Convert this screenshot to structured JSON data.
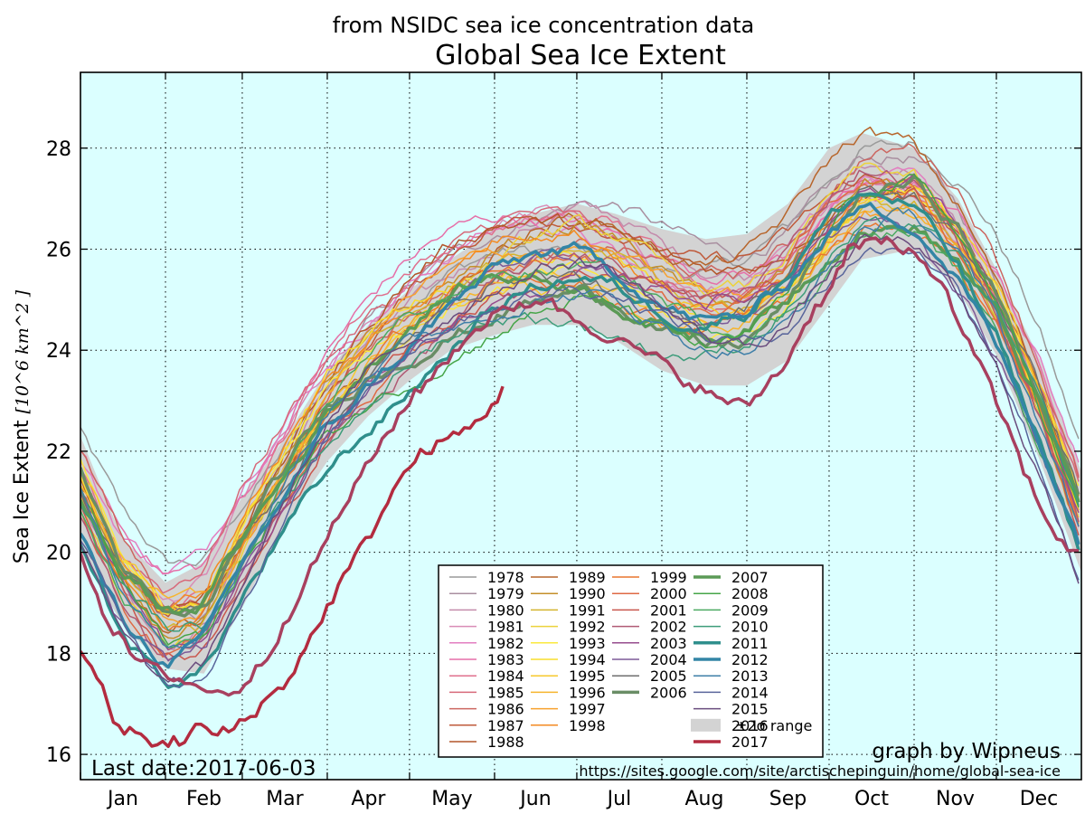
{
  "header": {
    "subtitle": "from NSIDC sea ice concentration data",
    "title": "Global Sea Ice Extent"
  },
  "footer": {
    "last_date": "Last date:2017-06-03",
    "credit": "graph by Wipneus",
    "url": "https://sites.google.com/site/arctischepinguin/home/global-sea-ice"
  },
  "chart_data": {
    "type": "line",
    "title": "Global Sea Ice Extent",
    "subtitle": "from NSIDC sea ice concentration data",
    "ylabel": "Sea Ice Extent [10^6 km^2 ]",
    "xlabel": "",
    "x_unit": "day of year",
    "xlim": [
      0,
      365
    ],
    "ylim": [
      15.5,
      29.5
    ],
    "yticks": [
      16,
      18,
      20,
      22,
      24,
      26,
      28
    ],
    "xticks": [
      {
        "label": "Jan",
        "day": 0
      },
      {
        "label": "Feb",
        "day": 31
      },
      {
        "label": "Mar",
        "day": 59
      },
      {
        "label": "Apr",
        "day": 90
      },
      {
        "label": "May",
        "day": 120
      },
      {
        "label": "Jun",
        "day": 151
      },
      {
        "label": "Jul",
        "day": 181
      },
      {
        "label": "Aug",
        "day": 212
      },
      {
        "label": "Sep",
        "day": 243
      },
      {
        "label": "Oct",
        "day": 273
      },
      {
        "label": "Nov",
        "day": 304
      },
      {
        "label": "Dec",
        "day": 334
      }
    ],
    "grid": true,
    "legend_position": "bottom-center",
    "background_color": "#dbffff",
    "range": {
      "name": "±2σ range",
      "color": "#d3d3d3",
      "day": [
        0,
        15,
        31,
        45,
        59,
        75,
        90,
        105,
        120,
        135,
        151,
        165,
        181,
        195,
        212,
        228,
        243,
        258,
        273,
        285,
        304,
        320,
        334,
        350,
        365
      ],
      "upper": [
        22.3,
        20.3,
        19.4,
        19.8,
        21.1,
        22.3,
        23.6,
        24.5,
        25.2,
        25.8,
        26.4,
        26.7,
        26.9,
        26.7,
        26.4,
        26.2,
        26.3,
        26.9,
        28.0,
        28.3,
        28.0,
        27.0,
        25.6,
        23.8,
        21.6
      ],
      "lower": [
        20.0,
        18.6,
        17.7,
        17.6,
        18.9,
        20.6,
        21.8,
        22.7,
        23.4,
        24.0,
        24.3,
        24.5,
        24.5,
        24.2,
        23.6,
        23.3,
        23.3,
        23.8,
        24.9,
        25.8,
        26.0,
        25.2,
        23.9,
        21.8,
        19.6
      ]
    },
    "mean_curve": {
      "day": [
        0,
        15,
        31,
        45,
        59,
        75,
        90,
        105,
        120,
        135,
        151,
        165,
        181,
        195,
        212,
        228,
        243,
        258,
        273,
        285,
        304,
        320,
        334,
        350,
        365
      ],
      "value": [
        21.1,
        19.4,
        18.4,
        18.6,
        20.0,
        21.4,
        22.7,
        23.6,
        24.3,
        24.9,
        25.4,
        25.6,
        25.7,
        25.5,
        25.0,
        24.7,
        24.8,
        25.4,
        26.4,
        27.0,
        27.0,
        26.1,
        24.8,
        22.8,
        20.6
      ]
    },
    "series": [
      {
        "name": "1978",
        "color": "#9a9a9a",
        "lw": 1.5
      },
      {
        "name": "1979",
        "color": "#a98fa0",
        "lw": 1.5
      },
      {
        "name": "1980",
        "color": "#c48bab",
        "lw": 1.5
      },
      {
        "name": "1981",
        "color": "#d98cb6",
        "lw": 1.5
      },
      {
        "name": "1982",
        "color": "#e37ec0",
        "lw": 1.5
      },
      {
        "name": "1983",
        "color": "#e66fa8",
        "lw": 1.5
      },
      {
        "name": "1984",
        "color": "#e0708e",
        "lw": 1.5
      },
      {
        "name": "1985",
        "color": "#d7697a",
        "lw": 1.5
      },
      {
        "name": "1986",
        "color": "#cc6660",
        "lw": 1.5
      },
      {
        "name": "1987",
        "color": "#bf5a3b",
        "lw": 1.5
      },
      {
        "name": "1988",
        "color": "#b3562a",
        "lw": 1.5
      },
      {
        "name": "1989",
        "color": "#b7652b",
        "lw": 1.5
      },
      {
        "name": "1990",
        "color": "#c48f2a",
        "lw": 1.5
      },
      {
        "name": "1991",
        "color": "#d4b52f",
        "lw": 1.5
      },
      {
        "name": "1992",
        "color": "#ecd33c",
        "lw": 1.5
      },
      {
        "name": "1993",
        "color": "#fbe93e",
        "lw": 1.5
      },
      {
        "name": "1994",
        "color": "#f8dd2f",
        "lw": 1.5
      },
      {
        "name": "1995",
        "color": "#f7c92e",
        "lw": 1.5
      },
      {
        "name": "1996",
        "color": "#f6b52d",
        "lw": 1.5
      },
      {
        "name": "1997",
        "color": "#f7a12d",
        "lw": 1.5
      },
      {
        "name": "1998",
        "color": "#f38a22",
        "lw": 1.5
      },
      {
        "name": "1999",
        "color": "#e8762f",
        "lw": 1.5
      },
      {
        "name": "2000",
        "color": "#df6a44",
        "lw": 1.5
      },
      {
        "name": "2001",
        "color": "#c9574e",
        "lw": 1.5
      },
      {
        "name": "2002",
        "color": "#b05a74",
        "lw": 1.5
      },
      {
        "name": "2003",
        "color": "#964c8e",
        "lw": 1.5
      },
      {
        "name": "2004",
        "color": "#7d5a98",
        "lw": 1.5
      },
      {
        "name": "2005",
        "color": "#6f6f6f",
        "lw": 1.5
      },
      {
        "name": "2006",
        "color": "#6a8d66",
        "lw": 3.5
      },
      {
        "name": "2007",
        "color": "#5b9a56",
        "lw": 3.5
      },
      {
        "name": "2008",
        "color": "#46a548",
        "lw": 1.5
      },
      {
        "name": "2009",
        "color": "#4caa62",
        "lw": 1.5
      },
      {
        "name": "2010",
        "color": "#3d9c7a",
        "lw": 1.5
      },
      {
        "name": "2011",
        "color": "#2f8f8c",
        "lw": 3.5
      },
      {
        "name": "2012",
        "color": "#3385a6",
        "lw": 3.5
      },
      {
        "name": "2013",
        "color": "#3f7fa8",
        "lw": 1.5
      },
      {
        "name": "2014",
        "color": "#59659b",
        "lw": 1.5
      },
      {
        "name": "2015",
        "color": "#6a4c7e",
        "lw": 1.5
      },
      {
        "name": "2016",
        "color": "#a8405f",
        "lw": 3.5
      },
      {
        "name": "2017",
        "color": "#b32b3f",
        "lw": 3.5
      }
    ],
    "highlight_series": {
      "2016": {
        "day": [
          0,
          10,
          20,
          31,
          40,
          50,
          59,
          70,
          80,
          90,
          100,
          110,
          120,
          130,
          140,
          151,
          160,
          170,
          181,
          190,
          200,
          212,
          220,
          230,
          243,
          250,
          258,
          265,
          273,
          280,
          290,
          295,
          300,
          304,
          306,
          310,
          315,
          320,
          325,
          330,
          334,
          340,
          345,
          350,
          355,
          360,
          365
        ],
        "value": [
          20.0,
          18.6,
          17.9,
          17.6,
          17.4,
          17.2,
          17.3,
          18.1,
          19.2,
          20.3,
          21.3,
          22.2,
          23.0,
          23.6,
          24.2,
          24.7,
          24.9,
          25.0,
          24.6,
          24.3,
          24.1,
          23.8,
          23.4,
          23.1,
          22.9,
          23.3,
          23.8,
          24.6,
          25.2,
          26.0,
          26.2,
          26.1,
          25.9,
          26.0,
          25.8,
          25.6,
          25.2,
          24.6,
          24.0,
          23.5,
          23.0,
          22.2,
          21.5,
          20.9,
          20.4,
          20.1,
          19.9
        ]
      },
      "2017": {
        "day": [
          0,
          3,
          5,
          8,
          10,
          12,
          15,
          20,
          25,
          28,
          31,
          35,
          38,
          42,
          45,
          50,
          55,
          60,
          65,
          70,
          75,
          80,
          85,
          90,
          95,
          100,
          105,
          110,
          115,
          120,
          125,
          130,
          135,
          140,
          145,
          150,
          154
        ],
        "value": [
          18.0,
          17.9,
          17.7,
          17.3,
          16.9,
          16.7,
          16.4,
          16.5,
          16.3,
          16.1,
          16.2,
          16.3,
          16.2,
          16.6,
          16.5,
          16.4,
          16.5,
          16.7,
          16.9,
          17.2,
          17.4,
          17.9,
          18.4,
          18.9,
          19.4,
          19.9,
          20.3,
          20.8,
          21.3,
          21.7,
          22.0,
          22.1,
          22.3,
          22.4,
          22.6,
          22.9,
          23.2
        ]
      }
    }
  }
}
